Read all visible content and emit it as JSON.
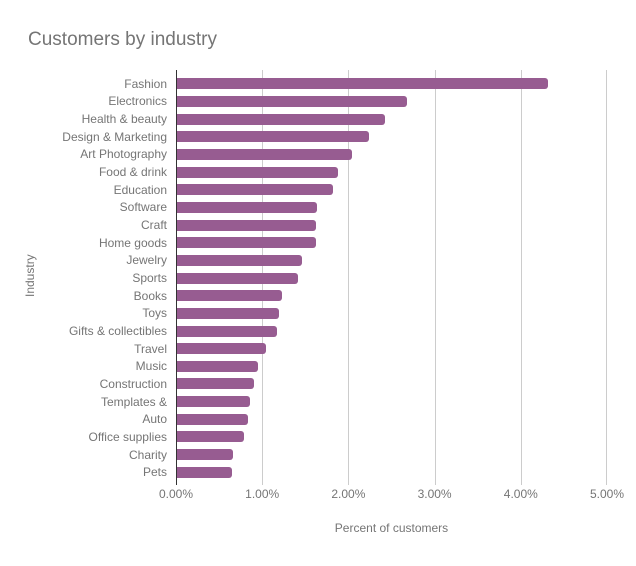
{
  "chart_data": {
    "type": "bar",
    "orientation": "horizontal",
    "title": "Customers by industry",
    "xlabel": "Percent of customers",
    "ylabel": "Industry",
    "categories": [
      "Fashion",
      "Electronics",
      "Health & beauty",
      "Design & Marketing",
      "Art Photography",
      "Food & drink",
      "Education",
      "Software",
      "Craft",
      "Home goods",
      "Jewelry",
      "Sports",
      "Books",
      "Toys",
      "Gifts & collectibles",
      "Travel",
      "Music",
      "Construction",
      "Templates &",
      "Auto",
      "Office supplies",
      "Charity",
      "Pets"
    ],
    "values": [
      4.32,
      2.68,
      2.42,
      2.24,
      2.04,
      1.88,
      1.82,
      1.63,
      1.62,
      1.62,
      1.46,
      1.41,
      1.23,
      1.2,
      1.17,
      1.04,
      0.95,
      0.9,
      0.86,
      0.84,
      0.79,
      0.66,
      0.65
    ],
    "x_ticks": [
      "0.00%",
      "1.00%",
      "2.00%",
      "3.00%",
      "4.00%",
      "5.00%"
    ],
    "xlim": [
      0,
      5
    ],
    "grid": true,
    "legend": "none",
    "colors": {
      "bar": "#975C91",
      "grid": "#CCCCCC",
      "axis": "#333333",
      "text": "#757575"
    }
  }
}
